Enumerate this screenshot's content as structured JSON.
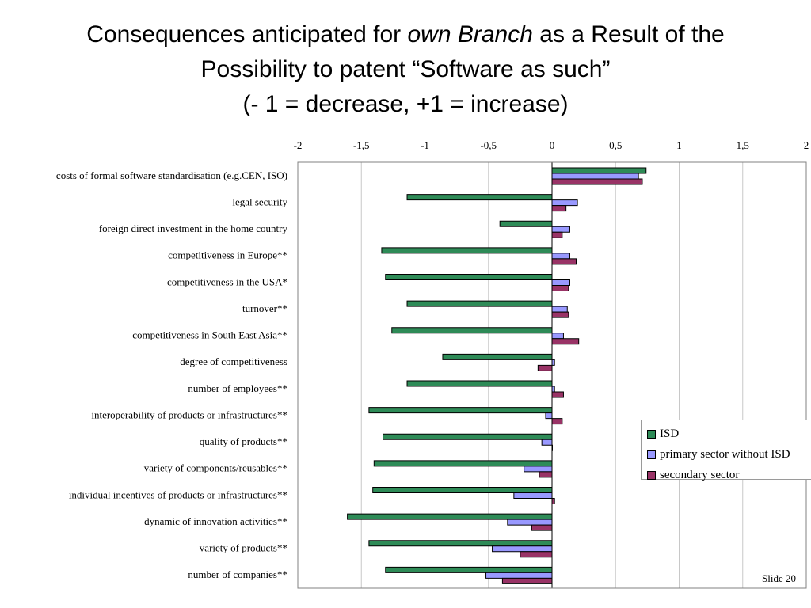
{
  "title": {
    "line1_pre": "Consequences anticipated  for ",
    "line1_em": "own Branch",
    "line1_post": " as a Result of the",
    "line2": "Possibility to patent “Software as such”",
    "line3": "(- 1 = decrease, +1 = increase)"
  },
  "slide_label": "Slide 20",
  "colors": {
    "ISD": "#2e8b57",
    "primary": "#9999ff",
    "secondary": "#993366"
  },
  "chart_data": {
    "type": "bar",
    "orientation": "horizontal",
    "xlim": [
      -2,
      2
    ],
    "grid": true,
    "legend_position": "right",
    "x_tick_values": [
      -2,
      -1.5,
      -1,
      -0.5,
      0,
      0.5,
      1,
      1.5,
      2
    ],
    "x_tick_labels": [
      "-2",
      "-1,5",
      "-1",
      "-0,5",
      "0",
      "0,5",
      "1",
      "1,5",
      "2"
    ],
    "categories": [
      "costs of formal software standardisation (e.g.CEN, ISO)",
      "legal security",
      "foreign direct investment in the home country",
      "competitiveness in Europe**",
      "competitiveness in the USA*",
      "turnover**",
      "competitiveness in South East Asia**",
      "degree of competitiveness",
      "number of employees**",
      "interoperability of products or infrastructures**",
      "quality of products**",
      "variety of components/reusables**",
      "individual incentives of products or infrastructures**",
      "dynamic of innovation activities**",
      "variety of products**",
      "number of companies**"
    ],
    "series": [
      {
        "name": "ISD",
        "color": "#2e8b57",
        "values": [
          0.74,
          -1.14,
          -0.41,
          -1.34,
          -1.31,
          -1.14,
          -1.26,
          -0.86,
          -1.14,
          -1.44,
          -1.33,
          -1.4,
          -1.41,
          -1.61,
          -1.44,
          -1.31
        ]
      },
      {
        "name": "primary sector without ISD",
        "color": "#9999ff",
        "values": [
          0.68,
          0.2,
          0.14,
          0.14,
          0.14,
          0.12,
          0.09,
          0.02,
          0.02,
          -0.05,
          -0.08,
          -0.22,
          -0.3,
          -0.35,
          -0.47,
          -0.52
        ]
      },
      {
        "name": "secondary sector",
        "color": "#993366",
        "values": [
          0.71,
          0.11,
          0.08,
          0.19,
          0.13,
          0.13,
          0.21,
          -0.11,
          0.09,
          0.08,
          0.0,
          -0.1,
          0.02,
          -0.16,
          -0.25,
          -0.39
        ]
      }
    ]
  }
}
